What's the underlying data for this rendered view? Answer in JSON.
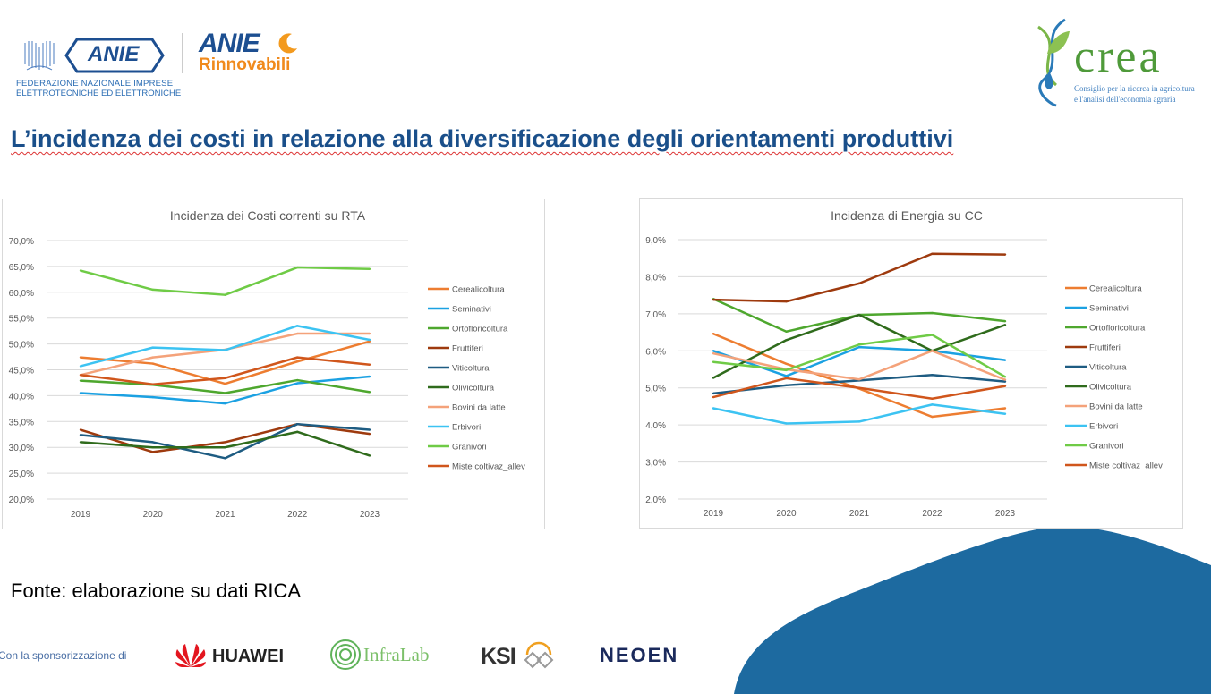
{
  "header": {
    "anie_logo": {
      "name": "ANIE",
      "subtitle_line1": "FEDERAZIONE NAZIONALE IMPRESE",
      "subtitle_line2": "ELETTROTECNICHE ED ELETTRONICHE"
    },
    "anie_rinnovabili_logo": {
      "name": "ANIE",
      "sub": "Rinnovabili"
    },
    "crea_logo": {
      "name": "crea",
      "line1": "Consiglio per la ricerca in agricoltura",
      "line2": "e l'analisi dell'economia agraria"
    }
  },
  "title": "L’incidenza dei costi in relazione alla diversificazione degli orientamenti produttivi",
  "source": "Fonte: elaborazione su dati RICA",
  "footer": {
    "sponsor_label": "Con la sponsorizzazione di",
    "sponsors": [
      "HUAWEI",
      "InfraLab",
      "KSI",
      "NEOEN"
    ]
  },
  "colors": {
    "accent_blue": "#1a4f8a",
    "wave_blue": "#1d6aa0",
    "Cerealicoltura": "#ed7d31",
    "Seminativi": "#1ba1e2",
    "Ortofloricoltura": "#4ea72e",
    "Fruttiferi": "#9e3a0e",
    "Viticoltura": "#1e5c82",
    "Olivicoltura": "#2f6b1c",
    "Bovini da latte": "#f4a27a",
    "Erbivori": "#3cc3f2",
    "Granivori": "#6fcb46",
    "Miste coltivaz_allev": "#d0561c"
  },
  "chart_data": [
    {
      "type": "line",
      "title": "Incidenza dei Costi correnti su RTA",
      "x": [
        "2019",
        "2020",
        "2021",
        "2022",
        "2023"
      ],
      "ylim": [
        20,
        70
      ],
      "yticks": [
        "20,0%",
        "25,0%",
        "30,0%",
        "35,0%",
        "40,0%",
        "45,0%",
        "50,0%",
        "55,0%",
        "60,0%",
        "65,0%",
        "70,0%"
      ],
      "grid": true,
      "legend": "right",
      "series": [
        {
          "name": "Cerealicoltura",
          "values": [
            47.4,
            46.2,
            42.3,
            46.6,
            50.5
          ]
        },
        {
          "name": "Seminativi",
          "values": [
            40.5,
            39.7,
            38.5,
            42.4,
            43.7
          ]
        },
        {
          "name": "Ortofloricoltura",
          "values": [
            42.9,
            42.1,
            40.5,
            43.0,
            40.7
          ]
        },
        {
          "name": "Fruttiferi",
          "values": [
            33.4,
            29.1,
            31.0,
            34.5,
            32.6
          ]
        },
        {
          "name": "Viticoltura",
          "values": [
            32.4,
            31.0,
            27.9,
            34.5,
            33.4
          ]
        },
        {
          "name": "Olivicoltura",
          "values": [
            31.0,
            30.0,
            30.0,
            33.0,
            28.4
          ]
        },
        {
          "name": "Bovini da latte",
          "values": [
            44.0,
            47.4,
            48.9,
            52.0,
            52.0
          ]
        },
        {
          "name": "Erbivori",
          "values": [
            45.7,
            49.3,
            48.8,
            53.5,
            50.8
          ]
        },
        {
          "name": "Granivori",
          "values": [
            64.2,
            60.5,
            59.5,
            64.8,
            64.5
          ]
        },
        {
          "name": "Miste coltivaz_allev",
          "values": [
            44.0,
            42.2,
            43.4,
            47.4,
            46.0
          ]
        }
      ]
    },
    {
      "type": "line",
      "title": "Incidenza di Energia su CC",
      "x": [
        "2019",
        "2020",
        "2021",
        "2022",
        "2023"
      ],
      "ylim": [
        2,
        9
      ],
      "yticks": [
        "2,0%",
        "3,0%",
        "4,0%",
        "5,0%",
        "6,0%",
        "7,0%",
        "8,0%",
        "9,0%"
      ],
      "grid": true,
      "legend": "right",
      "series": [
        {
          "name": "Cerealicoltura",
          "values": [
            6.46,
            5.65,
            4.98,
            4.22,
            4.45
          ]
        },
        {
          "name": "Seminativi",
          "values": [
            6.0,
            5.32,
            6.1,
            6.0,
            5.75
          ]
        },
        {
          "name": "Ortofloricoltura",
          "values": [
            7.4,
            6.52,
            6.97,
            7.02,
            6.8
          ]
        },
        {
          "name": "Fruttiferi",
          "values": [
            7.38,
            7.33,
            7.82,
            8.62,
            8.6
          ]
        },
        {
          "name": "Viticoltura",
          "values": [
            4.85,
            5.07,
            5.2,
            5.35,
            5.17
          ]
        },
        {
          "name": "Olivicoltura",
          "values": [
            5.27,
            6.29,
            6.97,
            6.0,
            6.7
          ]
        },
        {
          "name": "Bovini da latte",
          "values": [
            5.93,
            5.5,
            5.23,
            6.0,
            5.22
          ]
        },
        {
          "name": "Erbivori",
          "values": [
            4.45,
            4.04,
            4.09,
            4.55,
            4.3
          ]
        },
        {
          "name": "Granivori",
          "values": [
            5.7,
            5.48,
            6.17,
            6.43,
            5.3
          ]
        },
        {
          "name": "Miste coltivaz_allev",
          "values": [
            4.75,
            5.26,
            5.0,
            4.71,
            5.05
          ]
        }
      ]
    }
  ]
}
